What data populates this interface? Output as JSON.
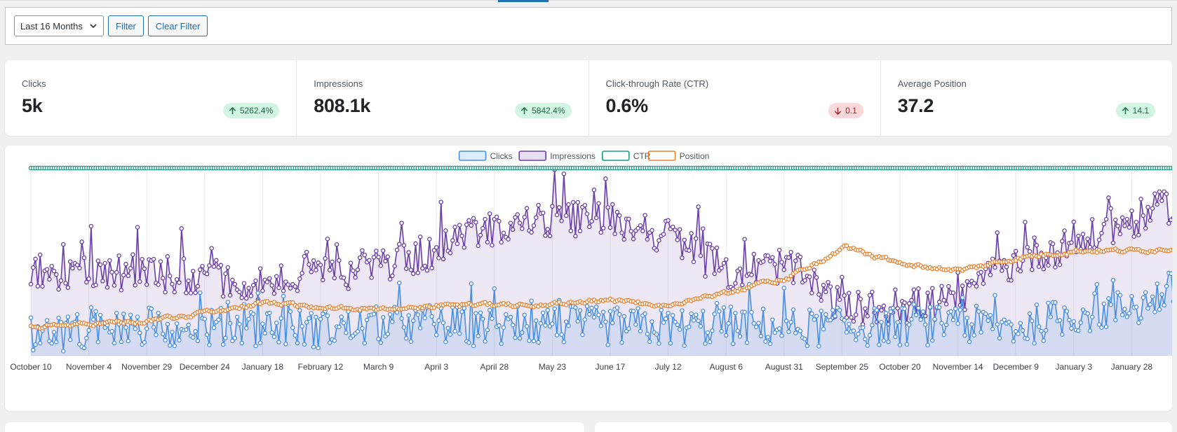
{
  "filter": {
    "period": "Last 16 Months",
    "filter_label": "Filter",
    "clear_label": "Clear Filter"
  },
  "stats": [
    {
      "key": "clicks",
      "label": "Clicks",
      "value": "5k",
      "change": "5262.4%",
      "direction": "up"
    },
    {
      "key": "impressions",
      "label": "Impressions",
      "value": "808.1k",
      "change": "5842.4%",
      "direction": "up"
    },
    {
      "key": "ctr",
      "label": "Click-through Rate (CTR)",
      "value": "0.6%",
      "change": "0.1",
      "direction": "down"
    },
    {
      "key": "position",
      "label": "Average Position",
      "value": "37.2",
      "change": "14.1",
      "direction": "up"
    }
  ],
  "colors": {
    "clicks": "#4a90e2",
    "impressions": "#6b3fa8",
    "ctr": "#1f9a82",
    "position": "#e6822e",
    "up_badge": "#d3f5e3",
    "down_badge": "#fbd8da"
  },
  "chart_data": {
    "type": "line",
    "x_tick_labels": [
      "October 10",
      "November 4",
      "November 29",
      "December 24",
      "January 18",
      "February 12",
      "March 9",
      "April 3",
      "April 28",
      "May 23",
      "June 17",
      "July 12",
      "August 6",
      "August 31",
      "September 25",
      "October 20",
      "November 14",
      "December 9",
      "January 3",
      "January 28"
    ],
    "legend": {
      "position": "top",
      "entries": [
        "Clicks",
        "Impressions",
        "CTR",
        "Position"
      ]
    },
    "grid": {
      "vertical": true,
      "horizontal": false
    },
    "y_axis_labels_shown": false,
    "points_per_tick": 25,
    "series": [
      {
        "name": "Clicks",
        "fill": true,
        "trend": [
          30,
          38,
          42,
          40,
          42,
          38,
          43,
          44,
          40,
          44,
          42,
          40,
          43,
          40,
          41,
          42,
          44,
          40,
          60,
          68,
          110
        ]
      },
      {
        "name": "Impressions",
        "fill": true,
        "trend": [
          120,
          120,
          118,
          112,
          103,
          114,
          130,
          150,
          185,
          195,
          195,
          170,
          118,
          130,
          65,
          70,
          78,
          140,
          160,
          195,
          230
        ]
      },
      {
        "name": "CTR",
        "fill": false,
        "trend": [
          276,
          277,
          276,
          277,
          277,
          276,
          277,
          277,
          276,
          277,
          276,
          277,
          276,
          277,
          277,
          277,
          278,
          278,
          279,
          279,
          279
        ]
      },
      {
        "name": "Position",
        "fill": false,
        "trend": [
          42,
          45,
          50,
          60,
          75,
          70,
          66,
          72,
          72,
          75,
          78,
          72,
          92,
          110,
          155,
          130,
          122,
          140,
          150,
          150,
          155
        ]
      }
    ]
  }
}
